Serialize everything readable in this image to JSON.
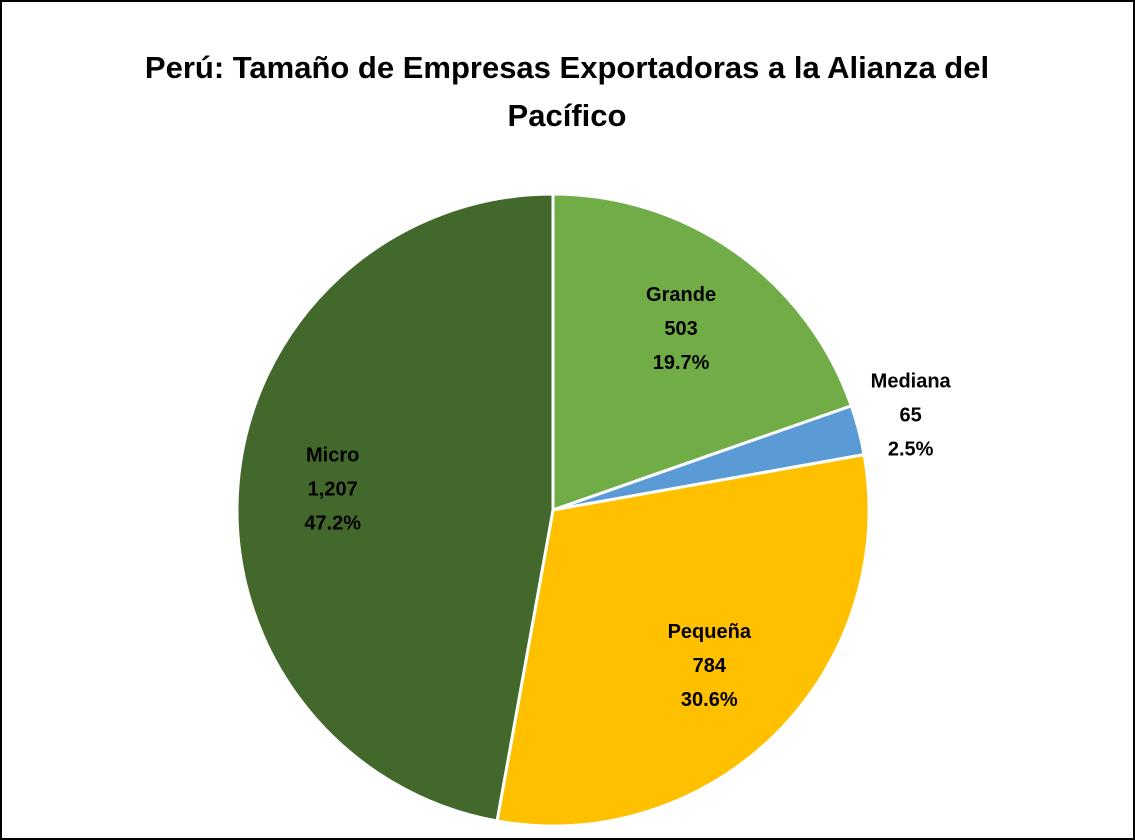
{
  "chart_data": {
    "type": "pie",
    "title": "Perú: Tamaño de Empresas Exportadoras a la Alianza del Pacífico",
    "categories": [
      "Grande",
      "Mediana",
      "Pequeña",
      "Micro"
    ],
    "values": [
      503,
      65,
      784,
      1207
    ],
    "value_labels": [
      "503",
      "65",
      "784",
      "1,207"
    ],
    "percent_labels": [
      "19.7%",
      "2.5%",
      "30.6%",
      "47.2%"
    ],
    "colors": [
      "#70ad47",
      "#5b9bd5",
      "#ffc000",
      "#43682b"
    ],
    "start_angle": 0,
    "direction": "clockwise"
  }
}
